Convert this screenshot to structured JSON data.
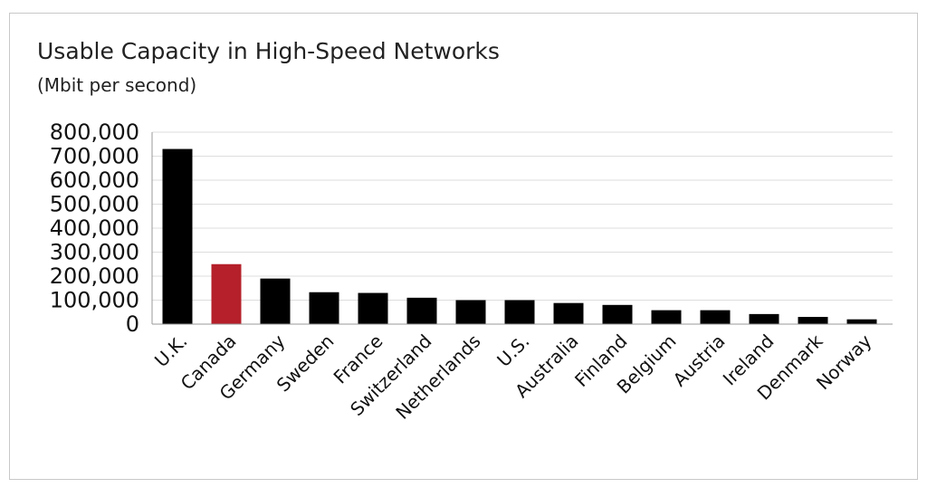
{
  "chart_data": {
    "type": "bar",
    "title": "Usable Capacity in High-Speed Networks",
    "subtitle": "(Mbit per second)",
    "categories": [
      "U.K.",
      "Canada",
      "Germany",
      "Sweden",
      "France",
      "Switzerland",
      "Netherlands",
      "U.S.",
      "Australia",
      "Finland",
      "Belgium",
      "Austria",
      "Ireland",
      "Denmark",
      "Norway"
    ],
    "values": [
      730000,
      250000,
      190000,
      133000,
      130000,
      110000,
      100000,
      100000,
      88000,
      80000,
      58000,
      58000,
      42000,
      30000,
      20000
    ],
    "highlight_category": "Canada",
    "colors": {
      "default": "#000000",
      "highlight": "#b5202a",
      "grid": "#dddddd",
      "axis": "#999999"
    },
    "ylim": [
      0,
      800000
    ],
    "yticks": [
      0,
      100000,
      200000,
      300000,
      400000,
      500000,
      600000,
      700000,
      800000
    ],
    "ytick_labels": [
      "0",
      "100,000",
      "200,000",
      "300,000",
      "400,000",
      "500,000",
      "600,000",
      "700,000",
      "800,000"
    ],
    "grid": true,
    "legend": false
  }
}
